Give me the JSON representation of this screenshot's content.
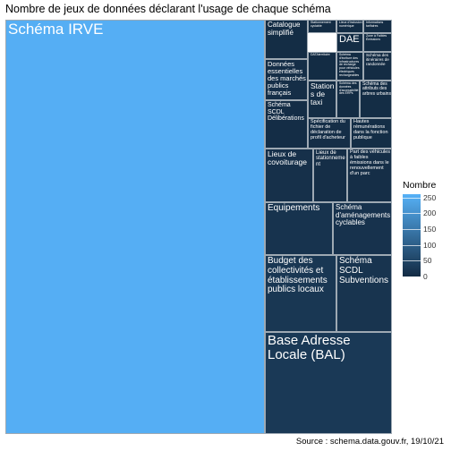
{
  "chart_data": {
    "type": "treemap",
    "title": "Nombre de jeux de données déclarant l'usage de chaque schéma",
    "caption": "Source : schema.data.gouv.fr, 19/10/21",
    "legend": {
      "title": "Nombre",
      "ticks": [
        250,
        200,
        150,
        100,
        50,
        0
      ],
      "range": [
        0,
        260
      ],
      "low_color": "#132b43",
      "high_color": "#56b1f7",
      "placement": "right"
    },
    "items": [
      {
        "name": "Schéma IRVE",
        "value": 255
      },
      {
        "name": "Base Adresse Locale (BAL)",
        "value": 28
      },
      {
        "name": "Budget des collectivités et établissements publics locaux",
        "value": 23
      },
      {
        "name": "Schéma SCDL Subventions",
        "value": 18
      },
      {
        "name": "Equipements",
        "value": 16
      },
      {
        "name": "Schéma d'aménagements cyclables",
        "value": 14
      },
      {
        "name": "Lieux de covoiturage",
        "value": 10
      },
      {
        "name": "Lieux de stationnement",
        "value": 6
      },
      {
        "name": "Part des véhicules à faibles émissions dans le renouvellement d'un parc",
        "value": 6
      },
      {
        "name": "Spécification du fichier de déclaration de profil d'acheteur",
        "value": 6
      },
      {
        "name": "Hautes rémunérations dans la fonction publique",
        "value": 5
      },
      {
        "name": "Données essentielles des marchés publics français",
        "value": 6
      },
      {
        "name": "Schéma SCDL Délibérations",
        "value": 4
      },
      {
        "name": "Stations de taxi",
        "value": 3
      },
      {
        "name": "Schéma des données d'accessibilité des ERPs",
        "value": 1
      },
      {
        "name": "Schéma des attributs des arbres urbains",
        "value": 3
      },
      {
        "name": "Catalogue simplifié",
        "value": 3
      },
      {
        "name": "DAE",
        "value": 3
      },
      {
        "name": "Zone à Faibles Émissions",
        "value": 1
      },
      {
        "name": "Schéma des itinéraires de randonnée",
        "value": 2
      },
      {
        "name": "Stationnement cyclable",
        "value": 1
      },
      {
        "name": "Lieux d'inclusion numérique",
        "value": 1
      },
      {
        "name": "Informations tarifaires",
        "value": 1
      },
      {
        "name": "DATAterritoire",
        "value": 1
      },
      {
        "name": "Schéma d'écriture des infrastructures de recharge pour véhicules électriques rechargeables",
        "value": 1
      }
    ]
  }
}
